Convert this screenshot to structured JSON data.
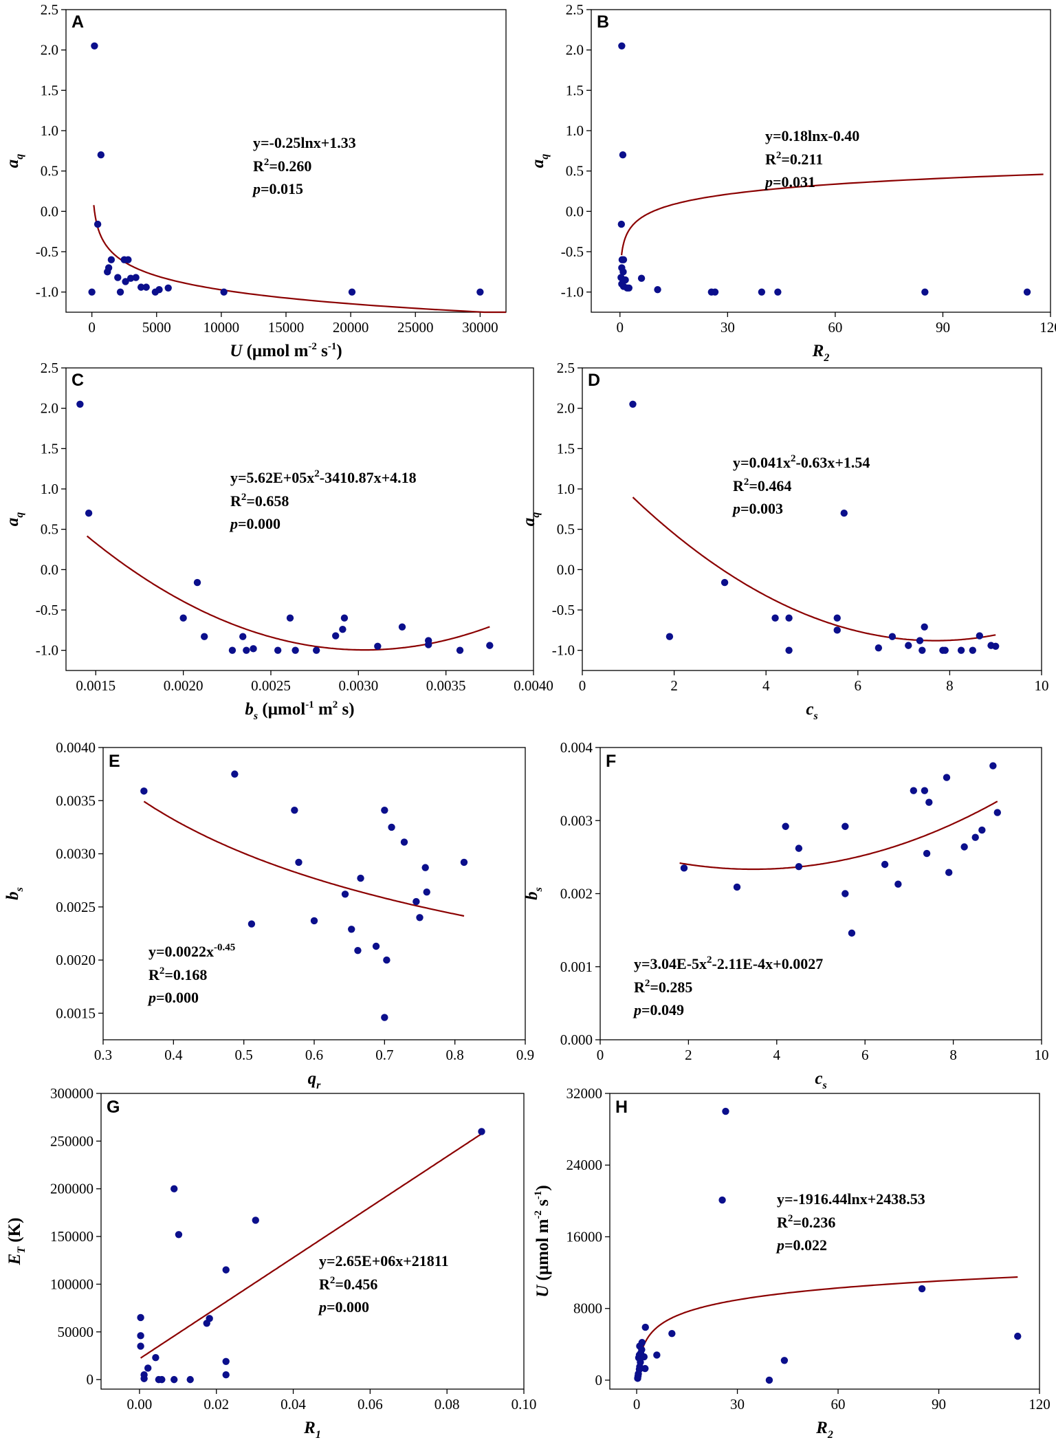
{
  "chart_data": [
    {
      "id": "A",
      "type": "scatter",
      "panel_label": "A",
      "xlabel": {
        "main": "U",
        "rest": " (μmol m",
        "sup": "-2",
        "rest2": " s",
        "sup2": "-1",
        "end": ")"
      },
      "ylabel": {
        "main": "a",
        "sub": "q"
      },
      "xlim": [
        -2000,
        32000
      ],
      "ylim": [
        -1.25,
        2.5
      ],
      "xticks": [
        0,
        5000,
        10000,
        15000,
        20000,
        25000,
        30000
      ],
      "xtick_labels": [
        "0",
        "5000",
        "10000",
        "15000",
        "20000",
        "25000",
        "30000"
      ],
      "yticks": [
        -1.0,
        -0.5,
        0.0,
        0.5,
        1.0,
        1.5,
        2.0,
        2.5
      ],
      "ytick_labels": [
        "-1.0",
        "-0.5",
        "0.0",
        "0.5",
        "1.0",
        "1.5",
        "2.0",
        "2.5"
      ],
      "points": [
        [
          200,
          2.05
        ],
        [
          700,
          0.7
        ],
        [
          450,
          -0.16
        ],
        [
          0,
          -1.0
        ],
        [
          1200,
          -0.75
        ],
        [
          1300,
          -0.7
        ],
        [
          1500,
          -0.6
        ],
        [
          2000,
          -0.82
        ],
        [
          2200,
          -1.0
        ],
        [
          2500,
          -0.6
        ],
        [
          2600,
          -0.87
        ],
        [
          2800,
          -0.6
        ],
        [
          3000,
          -0.83
        ],
        [
          3400,
          -0.82
        ],
        [
          3800,
          -0.94
        ],
        [
          4200,
          -0.94
        ],
        [
          4900,
          -1.0
        ],
        [
          5200,
          -0.97
        ],
        [
          5900,
          -0.95
        ],
        [
          10200,
          -1.0
        ],
        [
          20100,
          -1.0
        ],
        [
          30000,
          -1.0
        ]
      ],
      "fit": {
        "kind": "log",
        "a": -0.25,
        "b": 1.33,
        "x_from": 150,
        "x_to": 32000
      },
      "annotation": {
        "line1": "y=-0.25lnx+1.33",
        "r2_prefix": "R",
        "r2_sup": "2",
        "r2_value": "=0.260",
        "p_label": "p",
        "p_value": "=0.015"
      }
    },
    {
      "id": "B",
      "type": "scatter",
      "panel_label": "B",
      "xlabel": {
        "main": "R",
        "sub": "2"
      },
      "ylabel": {
        "main": "a",
        "sub": "q"
      },
      "xlim": [
        -8,
        120
      ],
      "ylim": [
        -1.25,
        2.5
      ],
      "xticks": [
        0,
        30,
        60,
        90,
        120
      ],
      "xtick_labels": [
        "0",
        "30",
        "60",
        "90",
        "120"
      ],
      "yticks": [
        -1.0,
        -0.5,
        0.0,
        0.5,
        1.0,
        1.5,
        2.0,
        2.5
      ],
      "ytick_labels": [
        "-1.0",
        "-0.5",
        "0.0",
        "0.5",
        "1.0",
        "1.5",
        "2.0",
        "2.5"
      ],
      "points": [
        [
          0.5,
          2.05
        ],
        [
          0.8,
          0.7
        ],
        [
          0.4,
          -0.16
        ],
        [
          0.6,
          -0.6
        ],
        [
          1.0,
          -0.6
        ],
        [
          0.5,
          -0.7
        ],
        [
          0.9,
          -0.75
        ],
        [
          0.3,
          -0.82
        ],
        [
          1.5,
          -0.85
        ],
        [
          0.5,
          -0.9
        ],
        [
          1.0,
          -0.93
        ],
        [
          2.0,
          -0.95
        ],
        [
          2.5,
          -0.95
        ],
        [
          6.0,
          -0.83
        ],
        [
          10.5,
          -0.97
        ],
        [
          25.5,
          -1.0
        ],
        [
          26.5,
          -1.0
        ],
        [
          39.5,
          -1.0
        ],
        [
          44.0,
          -1.0
        ],
        [
          85.0,
          -1.0
        ],
        [
          113.5,
          -1.0
        ]
      ],
      "fit": {
        "kind": "log",
        "a": 0.18,
        "b": -0.4,
        "x_from": 0.45,
        "x_to": 118
      },
      "annotation": {
        "line1": "y=0.18lnx-0.40",
        "r2_prefix": "R",
        "r2_sup": "2",
        "r2_value": "=0.211",
        "p_label": "p",
        "p_value": "=0.031"
      }
    },
    {
      "id": "C",
      "type": "scatter",
      "panel_label": "C",
      "xlabel": {
        "main": "b",
        "sub": "s",
        "rest": " (μmol",
        "sup": "-1",
        "rest2": " m",
        "sup2": "2",
        "end": " s)"
      },
      "ylabel": {
        "main": "a",
        "sub": "q"
      },
      "xlim": [
        0.00133,
        0.004
      ],
      "ylim": [
        -1.25,
        2.5
      ],
      "xticks": [
        0.0015,
        0.002,
        0.0025,
        0.003,
        0.0035,
        0.004
      ],
      "xtick_labels": [
        "0.0015",
        "0.0020",
        "0.0025",
        "0.0030",
        "0.0035",
        "0.0040"
      ],
      "yticks": [
        -1.0,
        -0.5,
        0.0,
        0.5,
        1.0,
        1.5,
        2.0,
        2.5
      ],
      "ytick_labels": [
        "-1.0",
        "-0.5",
        "0.0",
        "0.5",
        "1.0",
        "1.5",
        "2.0",
        "2.5"
      ],
      "points": [
        [
          0.00141,
          2.05
        ],
        [
          0.00146,
          0.7
        ],
        [
          0.002,
          -0.6
        ],
        [
          0.00208,
          -0.16
        ],
        [
          0.00212,
          -0.83
        ],
        [
          0.00228,
          -1.0
        ],
        [
          0.00234,
          -0.83
        ],
        [
          0.00236,
          -1.0
        ],
        [
          0.0024,
          -0.98
        ],
        [
          0.00254,
          -1.0
        ],
        [
          0.00261,
          -0.6
        ],
        [
          0.00264,
          -1.0
        ],
        [
          0.00276,
          -1.0
        ],
        [
          0.00287,
          -0.82
        ],
        [
          0.00291,
          -0.74
        ],
        [
          0.00292,
          -0.6
        ],
        [
          0.00311,
          -0.95
        ],
        [
          0.00325,
          -0.71
        ],
        [
          0.0034,
          -0.88
        ],
        [
          0.0034,
          -0.93
        ],
        [
          0.00358,
          -1.0
        ],
        [
          0.00375,
          -0.94
        ]
      ],
      "fit": {
        "kind": "poly",
        "c2": 562000,
        "c1": -3410.87,
        "c0": 4.18,
        "x_from": 0.00145,
        "x_to": 0.00375
      },
      "annotation": {
        "line1_pre": "y=5.62E+05x",
        "line1_sup": "2",
        "line1_post": "-3410.87x+4.18",
        "r2_prefix": "R",
        "r2_sup": "2",
        "r2_value": "=0.658",
        "p_label": "p",
        "p_value": "=0.000"
      }
    },
    {
      "id": "D",
      "type": "scatter",
      "panel_label": "D",
      "xlabel": {
        "main": "c",
        "sub": "s"
      },
      "ylabel": {
        "main": "a",
        "sub": "q"
      },
      "xlim": [
        0,
        10
      ],
      "ylim": [
        -1.25,
        2.5
      ],
      "xticks": [
        0,
        2,
        4,
        6,
        8,
        10
      ],
      "xtick_labels": [
        "0",
        "2",
        "4",
        "6",
        "8",
        "10"
      ],
      "yticks": [
        -1.0,
        -0.5,
        0.0,
        0.5,
        1.0,
        1.5,
        2.0,
        2.5
      ],
      "ytick_labels": [
        "-1.0",
        "-0.5",
        "0.0",
        "0.5",
        "1.0",
        "1.5",
        "2.0",
        "2.5"
      ],
      "points": [
        [
          1.1,
          2.05
        ],
        [
          5.7,
          0.7
        ],
        [
          3.1,
          -0.16
        ],
        [
          1.9,
          -0.83
        ],
        [
          4.2,
          -0.6
        ],
        [
          4.5,
          -0.6
        ],
        [
          4.5,
          -1.0
        ],
        [
          5.55,
          -0.6
        ],
        [
          5.55,
          -0.75
        ],
        [
          6.45,
          -0.97
        ],
        [
          6.75,
          -0.83
        ],
        [
          7.1,
          -0.94
        ],
        [
          7.35,
          -0.88
        ],
        [
          7.4,
          -1.0
        ],
        [
          7.45,
          -0.71
        ],
        [
          7.85,
          -1.0
        ],
        [
          7.9,
          -1.0
        ],
        [
          8.25,
          -1.0
        ],
        [
          8.5,
          -1.0
        ],
        [
          8.65,
          -0.82
        ],
        [
          8.9,
          -0.94
        ],
        [
          9.0,
          -0.95
        ]
      ],
      "fit": {
        "kind": "poly",
        "c2": 0.041,
        "c1": -0.63,
        "c0": 1.54,
        "x_from": 1.1,
        "x_to": 9.0
      },
      "annotation": {
        "line1_pre": "y=0.041x",
        "line1_sup": "2",
        "line1_post": "-0.63x+1.54",
        "r2_prefix": "R",
        "r2_sup": "2",
        "r2_value": "=0.464",
        "p_label": "p",
        "p_value": "=0.003"
      }
    },
    {
      "id": "E",
      "type": "scatter",
      "panel_label": "E",
      "xlabel": {
        "main": "q",
        "sub": "r"
      },
      "ylabel": {
        "main": "b",
        "sub": "s"
      },
      "xlim": [
        0.3,
        0.9
      ],
      "ylim": [
        0.00125,
        0.004
      ],
      "xticks": [
        0.3,
        0.4,
        0.5,
        0.6,
        0.7,
        0.8,
        0.9
      ],
      "xtick_labels": [
        "0.3",
        "0.4",
        "0.5",
        "0.6",
        "0.7",
        "0.8",
        "0.9"
      ],
      "yticks": [
        0.0015,
        0.002,
        0.0025,
        0.003,
        0.0035,
        0.004
      ],
      "ytick_labels": [
        "0.0015",
        "0.0020",
        "0.0025",
        "0.0030",
        "0.0035",
        "0.0040"
      ],
      "points": [
        [
          0.358,
          0.00359
        ],
        [
          0.487,
          0.00375
        ],
        [
          0.511,
          0.00234
        ],
        [
          0.572,
          0.00341
        ],
        [
          0.578,
          0.00292
        ],
        [
          0.6,
          0.00237
        ],
        [
          0.644,
          0.00262
        ],
        [
          0.653,
          0.00229
        ],
        [
          0.662,
          0.00209
        ],
        [
          0.666,
          0.00277
        ],
        [
          0.688,
          0.00213
        ],
        [
          0.7,
          0.00341
        ],
        [
          0.703,
          0.002
        ],
        [
          0.7,
          0.00146
        ],
        [
          0.71,
          0.00325
        ],
        [
          0.728,
          0.00311
        ],
        [
          0.745,
          0.00255
        ],
        [
          0.75,
          0.0024
        ],
        [
          0.758,
          0.00287
        ],
        [
          0.76,
          0.00264
        ],
        [
          0.813,
          0.00292
        ]
      ],
      "fit": {
        "kind": "power",
        "a": 0.0022,
        "b": -0.45,
        "x_from": 0.358,
        "x_to": 0.813
      },
      "annotation": {
        "line1_pre": "y=0.0022x",
        "line1_sup": "-0.45",
        "line1_post": "",
        "r2_prefix": "R",
        "r2_sup": "2",
        "r2_value": "=0.168",
        "p_label": "p",
        "p_value": "=0.000"
      }
    },
    {
      "id": "F",
      "type": "scatter",
      "panel_label": "F",
      "xlabel": {
        "main": "c",
        "sub": "s"
      },
      "ylabel": {
        "main": "b",
        "sub": "s"
      },
      "xlim": [
        0,
        10
      ],
      "ylim": [
        0,
        0.004
      ],
      "xticks": [
        0,
        2,
        4,
        6,
        8,
        10
      ],
      "xtick_labels": [
        "0",
        "2",
        "4",
        "6",
        "8",
        "10"
      ],
      "yticks": [
        0,
        0.001,
        0.002,
        0.003,
        0.004
      ],
      "ytick_labels": [
        "0.000",
        "0.001",
        "0.002",
        "0.003",
        "0.004"
      ],
      "points": [
        [
          1.9,
          0.00235
        ],
        [
          3.1,
          0.00209
        ],
        [
          4.2,
          0.00292
        ],
        [
          4.5,
          0.00262
        ],
        [
          4.5,
          0.00237
        ],
        [
          5.55,
          0.00292
        ],
        [
          5.55,
          0.002
        ],
        [
          5.7,
          0.00146
        ],
        [
          6.45,
          0.0024
        ],
        [
          6.75,
          0.00213
        ],
        [
          7.1,
          0.00341
        ],
        [
          7.35,
          0.00341
        ],
        [
          7.4,
          0.00255
        ],
        [
          7.45,
          0.00325
        ],
        [
          7.85,
          0.00359
        ],
        [
          7.9,
          0.00229
        ],
        [
          8.25,
          0.00264
        ],
        [
          8.5,
          0.00277
        ],
        [
          8.65,
          0.00287
        ],
        [
          8.9,
          0.00375
        ],
        [
          9.0,
          0.00311
        ]
      ],
      "fit": {
        "kind": "poly",
        "c2": 3.04e-05,
        "c1": -0.000211,
        "c0": 0.0027,
        "x_from": 1.8,
        "x_to": 9.0
      },
      "annotation": {
        "line1_pre": "y=3.04E-5x",
        "line1_sup": "2",
        "line1_post": "-2.11E-4x+0.0027",
        "r2_prefix": "R",
        "r2_sup": "2",
        "r2_value": "=0.285",
        "p_label": "p",
        "p_value": "=0.049"
      }
    },
    {
      "id": "G",
      "type": "scatter",
      "panel_label": "G",
      "xlabel": {
        "main": "R",
        "sub": "1"
      },
      "ylabel": {
        "main": "E",
        "sub": "T",
        "rest": " (K)"
      },
      "xlim": [
        -0.01,
        0.1
      ],
      "ylim": [
        -10000,
        300000
      ],
      "xticks": [
        0.0,
        0.02,
        0.04,
        0.06,
        0.08,
        0.1
      ],
      "xtick_labels": [
        "0.00",
        "0.02",
        "0.04",
        "0.06",
        "0.08",
        "0.10"
      ],
      "yticks": [
        0,
        50000,
        100000,
        150000,
        200000,
        250000,
        300000
      ],
      "ytick_labels": [
        "0",
        "50000",
        "100000",
        "150000",
        "200000",
        "250000",
        "300000"
      ],
      "points": [
        [
          0.0003,
          65000
        ],
        [
          0.0003,
          46000
        ],
        [
          0.0003,
          35000
        ],
        [
          0.0012,
          5000
        ],
        [
          0.0012,
          1000
        ],
        [
          0.0022,
          12000
        ],
        [
          0.0042,
          23000
        ],
        [
          0.005,
          0
        ],
        [
          0.0058,
          0
        ],
        [
          0.009,
          200000
        ],
        [
          0.009,
          0
        ],
        [
          0.0102,
          152000
        ],
        [
          0.0132,
          0
        ],
        [
          0.0175,
          59000
        ],
        [
          0.0182,
          64000
        ],
        [
          0.0225,
          115000
        ],
        [
          0.0225,
          19000
        ],
        [
          0.0225,
          5000
        ],
        [
          0.0302,
          167000
        ],
        [
          0.089,
          260000
        ]
      ],
      "fit": {
        "kind": "linear",
        "m": 2650000,
        "b": 21811,
        "x_from": 0.0003,
        "x_to": 0.089
      },
      "annotation": {
        "line1_pre": "y=2.65E+06x+21811",
        "line1_sup": "",
        "line1_post": "",
        "r2_prefix": "R",
        "r2_sup": "2",
        "r2_value": "=0.456",
        "p_label": "p",
        "p_value": "=0.000"
      }
    },
    {
      "id": "H",
      "type": "scatter",
      "panel_label": "H",
      "xlabel": {
        "main": "R",
        "sub": "2"
      },
      "ylabel": {
        "main": "U",
        "rest": " (μmol m",
        "sup": "-2",
        "rest2": " s",
        "sup2": "-1",
        "end": ")"
      },
      "xlim": [
        -8,
        120
      ],
      "ylim": [
        -1000,
        32000
      ],
      "xticks": [
        0,
        30,
        60,
        90,
        120
      ],
      "xtick_labels": [
        "0",
        "30",
        "60",
        "90",
        "120"
      ],
      "yticks": [
        0,
        8000,
        16000,
        24000,
        32000
      ],
      "ytick_labels": [
        "0",
        "8000",
        "16000",
        "24000",
        "32000"
      ],
      "points": [
        [
          0.3,
          200
        ],
        [
          0.5,
          700
        ],
        [
          0.4,
          450
        ],
        [
          0.8,
          1200
        ],
        [
          0.9,
          1500
        ],
        [
          1.1,
          2000
        ],
        [
          0.6,
          2500
        ],
        [
          0.8,
          2800
        ],
        [
          1.2,
          3000
        ],
        [
          1.5,
          3400
        ],
        [
          0.9,
          3800
        ],
        [
          1.6,
          4200
        ],
        [
          2.5,
          1300
        ],
        [
          2.2,
          2600
        ],
        [
          2.6,
          5900
        ],
        [
          6.0,
          2800
        ],
        [
          10.5,
          5200
        ],
        [
          25.5,
          20100
        ],
        [
          26.5,
          30000
        ],
        [
          39.5,
          0
        ],
        [
          44.0,
          2200
        ],
        [
          85.0,
          10200
        ],
        [
          113.5,
          4900
        ]
      ],
      "fit": {
        "kind": "log",
        "a": -1916.44,
        "b": 2438.53,
        "x_from": 0.6,
        "x_to": 113.5,
        "invert_log": true
      },
      "annotation": {
        "line1_pre": "y=-1916.44lnx+2438.53",
        "line1_sup": "",
        "line1_post": "",
        "r2_prefix": "R",
        "r2_sup": "2",
        "r2_value": "=0.236",
        "p_label": "p",
        "p_value": "=0.022"
      }
    }
  ]
}
